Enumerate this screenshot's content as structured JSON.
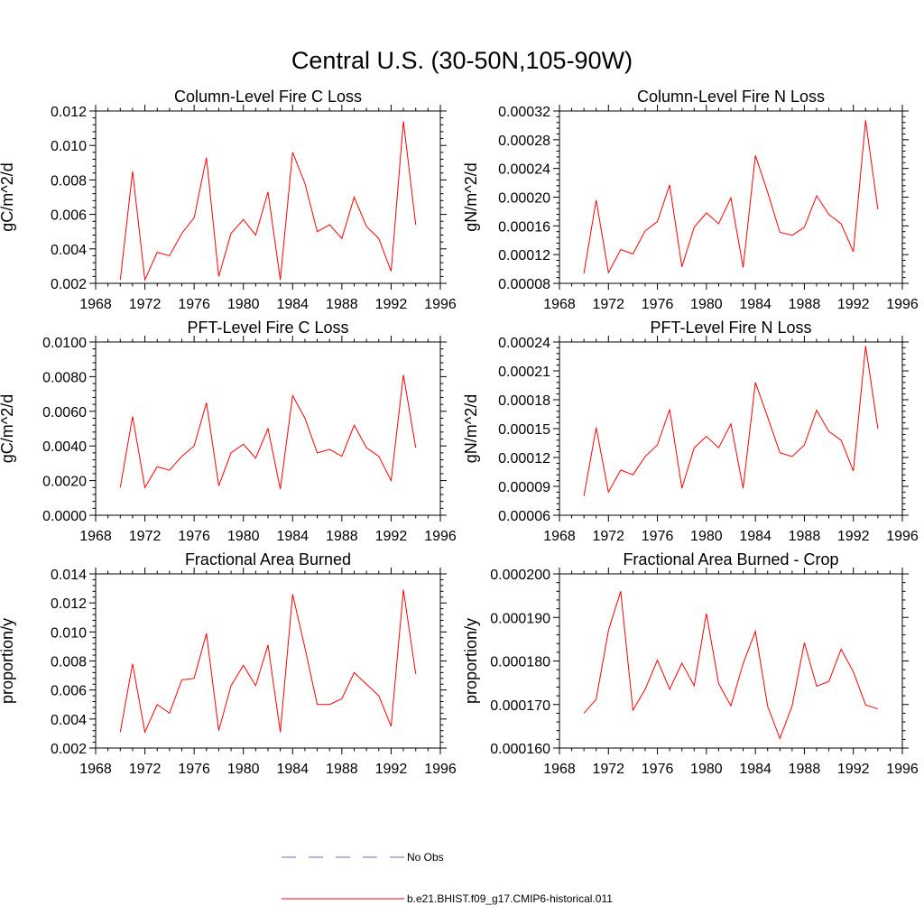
{
  "figure": {
    "title": "Central U.S. (30-50N,105-90W)",
    "line_color": "#ff0000",
    "obs_color": "#6e6eb4"
  },
  "legend": {
    "items": [
      {
        "label": "No Obs",
        "style": "dashed",
        "color": "#6e6eb4"
      },
      {
        "label": "b.e21.BHIST.f09_g17.CMIP6-historical.011",
        "style": "solid",
        "color": "#ff0000"
      }
    ]
  },
  "chart_data": [
    {
      "type": "line",
      "title": "Column-Level Fire C Loss",
      "xlabel": "",
      "ylabel": "gC/m^2/d",
      "xlim": [
        1968,
        1996
      ],
      "ylim": [
        0.002,
        0.012
      ],
      "xticks": [
        "1968",
        "1972",
        "1976",
        "1980",
        "1984",
        "1988",
        "1992",
        "1996"
      ],
      "yticks": [
        "0.002",
        "0.004",
        "0.006",
        "0.008",
        "0.010",
        "0.012"
      ],
      "x": [
        1970,
        1971,
        1972,
        1973,
        1974,
        1975,
        1976,
        1977,
        1978,
        1979,
        1980,
        1981,
        1982,
        1983,
        1984,
        1985,
        1986,
        1987,
        1988,
        1989,
        1990,
        1991,
        1992,
        1993,
        1994
      ],
      "series": [
        {
          "name": "b.e21.BHIST.f09_g17.CMIP6-historical.011",
          "values": [
            0.0022,
            0.0085,
            0.0022,
            0.0038,
            0.0036,
            0.0049,
            0.0058,
            0.0093,
            0.0024,
            0.0049,
            0.0057,
            0.0048,
            0.0073,
            0.0022,
            0.0096,
            0.0078,
            0.005,
            0.0054,
            0.0046,
            0.007,
            0.0053,
            0.0046,
            0.0027,
            0.0114,
            0.0054
          ]
        }
      ]
    },
    {
      "type": "line",
      "title": "Column-Level Fire N Loss",
      "xlabel": "",
      "ylabel": "gN/m^2/d",
      "xlim": [
        1968,
        1996
      ],
      "ylim": [
        8e-05,
        0.00032
      ],
      "xticks": [
        "1968",
        "1972",
        "1976",
        "1980",
        "1984",
        "1988",
        "1992",
        "1996"
      ],
      "yticks": [
        "0.00008",
        "0.00012",
        "0.00016",
        "0.00020",
        "0.00024",
        "0.00028",
        "0.00032"
      ],
      "x": [
        1970,
        1971,
        1972,
        1973,
        1974,
        1975,
        1976,
        1977,
        1978,
        1979,
        1980,
        1981,
        1982,
        1983,
        1984,
        1985,
        1986,
        1987,
        1988,
        1989,
        1990,
        1991,
        1992,
        1993,
        1994
      ],
      "series": [
        {
          "name": "b.e21.BHIST.f09_g17.CMIP6-historical.011",
          "values": [
            9.4e-05,
            0.000196,
            9.5e-05,
            0.000127,
            0.000121,
            0.000153,
            0.000166,
            0.000217,
            0.000103,
            0.000158,
            0.000178,
            0.000163,
            0.000199,
            0.000102,
            0.000258,
            0.000207,
            0.000151,
            0.000147,
            0.000158,
            0.000202,
            0.000176,
            0.000163,
            0.000124,
            0.000307,
            0.000183
          ]
        }
      ]
    },
    {
      "type": "line",
      "title": "PFT-Level Fire C Loss",
      "xlabel": "",
      "ylabel": "gC/m^2/d",
      "xlim": [
        1968,
        1996
      ],
      "ylim": [
        0.0,
        0.01
      ],
      "xticks": [
        "1968",
        "1972",
        "1976",
        "1980",
        "1984",
        "1988",
        "1992",
        "1996"
      ],
      "yticks": [
        "0.0000",
        "0.0020",
        "0.0040",
        "0.0060",
        "0.0080",
        "0.0100"
      ],
      "x": [
        1970,
        1971,
        1972,
        1973,
        1974,
        1975,
        1976,
        1977,
        1978,
        1979,
        1980,
        1981,
        1982,
        1983,
        1984,
        1985,
        1986,
        1987,
        1988,
        1989,
        1990,
        1991,
        1992,
        1993,
        1994
      ],
      "series": [
        {
          "name": "b.e21.BHIST.f09_g17.CMIP6-historical.011",
          "values": [
            0.0016,
            0.0057,
            0.0016,
            0.0028,
            0.0026,
            0.0034,
            0.004,
            0.0065,
            0.0017,
            0.0036,
            0.0041,
            0.0033,
            0.005,
            0.0015,
            0.0069,
            0.0056,
            0.0036,
            0.0038,
            0.0034,
            0.0052,
            0.0039,
            0.0034,
            0.002,
            0.0081,
            0.0039
          ]
        }
      ]
    },
    {
      "type": "line",
      "title": "PFT-Level Fire N Loss",
      "xlabel": "",
      "ylabel": "gN/m^2/d",
      "xlim": [
        1968,
        1996
      ],
      "ylim": [
        6e-05,
        0.00024
      ],
      "xticks": [
        "1968",
        "1972",
        "1976",
        "1980",
        "1984",
        "1988",
        "1992",
        "1996"
      ],
      "yticks": [
        "0.00006",
        "0.00009",
        "0.00012",
        "0.00015",
        "0.00018",
        "0.00021",
        "0.00024"
      ],
      "x": [
        1970,
        1971,
        1972,
        1973,
        1974,
        1975,
        1976,
        1977,
        1978,
        1979,
        1980,
        1981,
        1982,
        1983,
        1984,
        1985,
        1986,
        1987,
        1988,
        1989,
        1990,
        1991,
        1992,
        1993,
        1994
      ],
      "series": [
        {
          "name": "b.e21.BHIST.f09_g17.CMIP6-historical.011",
          "values": [
            8e-05,
            0.000151,
            8.4e-05,
            0.000107,
            0.000102,
            0.000121,
            0.000133,
            0.00017,
            8.8e-05,
            0.00013,
            0.000142,
            0.00013,
            0.000155,
            8.8e-05,
            0.000198,
            0.000162,
            0.000125,
            0.000121,
            0.000133,
            0.000169,
            0.000147,
            0.000138,
            0.000106,
            0.000236,
            0.00015
          ]
        }
      ]
    },
    {
      "type": "line",
      "title": "Fractional Area Burned",
      "xlabel": "",
      "ylabel": "proportion/y",
      "xlim": [
        1968,
        1996
      ],
      "ylim": [
        0.002,
        0.014
      ],
      "xticks": [
        "1968",
        "1972",
        "1976",
        "1980",
        "1984",
        "1988",
        "1992",
        "1996"
      ],
      "yticks": [
        "0.002",
        "0.004",
        "0.006",
        "0.008",
        "0.010",
        "0.012",
        "0.014"
      ],
      "x": [
        1970,
        1971,
        1972,
        1973,
        1974,
        1975,
        1976,
        1977,
        1978,
        1979,
        1980,
        1981,
        1982,
        1983,
        1984,
        1985,
        1986,
        1987,
        1988,
        1989,
        1990,
        1991,
        1992,
        1993,
        1994
      ],
      "series": [
        {
          "name": "b.e21.BHIST.f09_g17.CMIP6-historical.011",
          "values": [
            0.0031,
            0.0078,
            0.0031,
            0.005,
            0.0044,
            0.0067,
            0.0068,
            0.0099,
            0.0032,
            0.0063,
            0.0077,
            0.0063,
            0.0091,
            0.0031,
            0.0126,
            0.0089,
            0.005,
            0.005,
            0.0054,
            0.0072,
            0.0064,
            0.0056,
            0.0035,
            0.0129,
            0.0071
          ]
        }
      ]
    },
    {
      "type": "line",
      "title": "Fractional Area Burned - Crop",
      "xlabel": "",
      "ylabel": "proportion/y",
      "xlim": [
        1968,
        1996
      ],
      "ylim": [
        0.00016,
        0.0002
      ],
      "xticks": [
        "1968",
        "1972",
        "1976",
        "1980",
        "1984",
        "1988",
        "1992",
        "1996"
      ],
      "yticks": [
        "0.000160",
        "0.000170",
        "0.000180",
        "0.000190",
        "0.000200"
      ],
      "x": [
        1970,
        1971,
        1972,
        1973,
        1974,
        1975,
        1976,
        1977,
        1978,
        1979,
        1980,
        1981,
        1982,
        1983,
        1984,
        1985,
        1986,
        1987,
        1988,
        1989,
        1990,
        1991,
        1992,
        1993,
        1994
      ],
      "series": [
        {
          "name": "b.e21.BHIST.f09_g17.CMIP6-historical.011",
          "values": [
            0.000168,
            0.0001712,
            0.000187,
            0.000196,
            0.0001687,
            0.0001735,
            0.0001802,
            0.0001735,
            0.0001795,
            0.0001743,
            0.0001909,
            0.0001748,
            0.0001697,
            0.0001794,
            0.0001868,
            0.0001696,
            0.0001622,
            0.0001697,
            0.0001842,
            0.0001742,
            0.0001753,
            0.0001827,
            0.0001775,
            0.0001699,
            0.000169
          ]
        }
      ]
    }
  ]
}
